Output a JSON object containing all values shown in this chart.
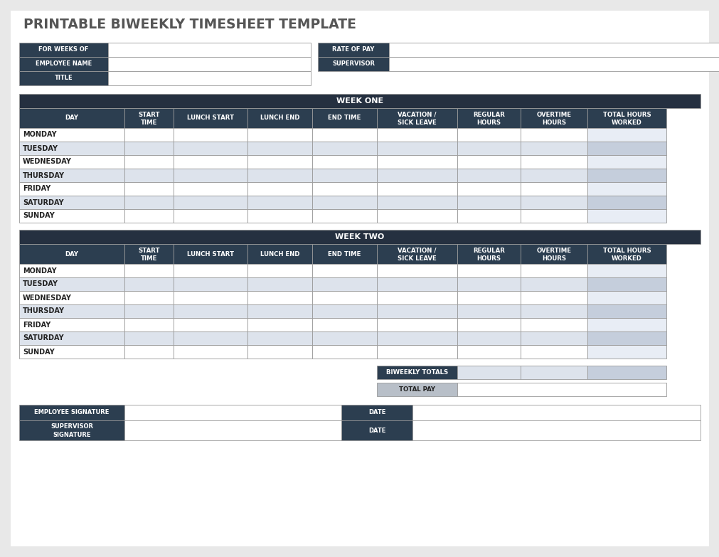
{
  "title": "PRINTABLE BIWEEKLY TIMESHEET TEMPLATE",
  "title_color": "#555555",
  "title_fontsize": 14,
  "bg_color": "#e8e8e8",
  "page_bg": "#ffffff",
  "dark_header": "#2c3e50",
  "week_header_bg": "#253040",
  "light_row_white": "#ffffff",
  "light_row_blue": "#dde3ec",
  "last_col_white": "#e8edf5",
  "last_col_blue": "#c5cedc",
  "border_color": "#999999",
  "col_headers": [
    "DAY",
    "START\nTIME",
    "LUNCH START",
    "LUNCH END",
    "END TIME",
    "VACATION /\nSICK LEAVE",
    "REGULAR\nHOURS",
    "OVERTIME\nHOURS",
    "TOTAL HOURS\nWORKED"
  ],
  "days": [
    "MONDAY",
    "TUESDAY",
    "WEDNESDAY",
    "THURSDAY",
    "FRIDAY",
    "SATURDAY",
    "SUNDAY"
  ],
  "dark_header_hex": "#2c3e50",
  "totals_label": "BIWEEKLY TOTALS",
  "total_pay_label": "TOTAL PAY",
  "total_pay_bg": "#b8bfc8",
  "gray_cell": "#d0d5de",
  "sig_labels": [
    "EMPLOYEE SIGNATURE",
    "SUPERVISOR\nSIGNATURE"
  ],
  "sig_right_labels": [
    "DATE",
    "DATE"
  ]
}
